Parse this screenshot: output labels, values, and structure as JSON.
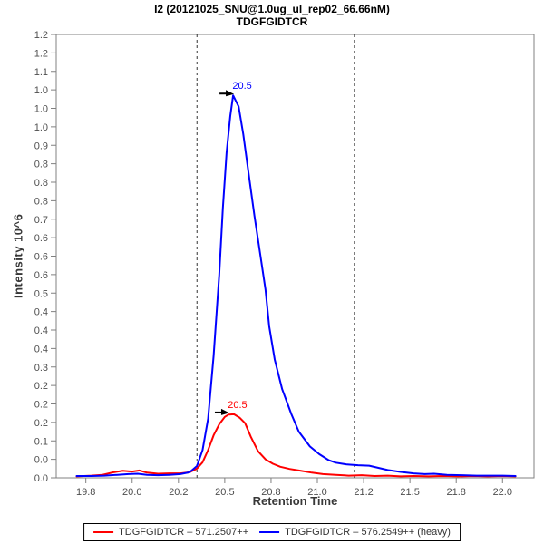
{
  "window": {
    "background": "#ffffff"
  },
  "chart_data": {
    "type": "line",
    "title": "I2 (20121025_SNU@1.0ug_ul_rep02_66.66nM)",
    "subtitle": "TDGFGIDTCR",
    "xlabel": "Retention Time",
    "ylabel": "Intensity 10^6",
    "xlim": [
      19.59,
      22.17
    ],
    "ylim": [
      0,
      1.2
    ],
    "grid": false,
    "legend_position": "bottom",
    "frame_color": "#808080",
    "tick_label_color": "#4d4d4d",
    "x_ticks": [
      {
        "v": 19.75,
        "label": "19.8"
      },
      {
        "v": 20.0,
        "label": "20.0"
      },
      {
        "v": 20.25,
        "label": "20.2"
      },
      {
        "v": 20.5,
        "label": "20.5"
      },
      {
        "v": 20.75,
        "label": "20.8"
      },
      {
        "v": 21.0,
        "label": "21.0"
      },
      {
        "v": 21.25,
        "label": "21.2"
      },
      {
        "v": 21.5,
        "label": "21.5"
      },
      {
        "v": 21.75,
        "label": "21.8"
      },
      {
        "v": 22.0,
        "label": "22.0"
      }
    ],
    "y_ticks": [
      {
        "v": 0.0,
        "label": "0.0"
      },
      {
        "v": 0.05,
        "label": "0.0"
      },
      {
        "v": 0.1,
        "label": "0.1"
      },
      {
        "v": 0.15,
        "label": "0.2"
      },
      {
        "v": 0.2,
        "label": "0.2"
      },
      {
        "v": 0.25,
        "label": "0.2"
      },
      {
        "v": 0.3,
        "label": "0.3"
      },
      {
        "v": 0.35,
        "label": "0.4"
      },
      {
        "v": 0.4,
        "label": "0.4"
      },
      {
        "v": 0.45,
        "label": "0.4"
      },
      {
        "v": 0.5,
        "label": "0.5"
      },
      {
        "v": 0.55,
        "label": "0.6"
      },
      {
        "v": 0.6,
        "label": "0.6"
      },
      {
        "v": 0.65,
        "label": "0.6"
      },
      {
        "v": 0.7,
        "label": "0.7"
      },
      {
        "v": 0.75,
        "label": "0.8"
      },
      {
        "v": 0.8,
        "label": "0.8"
      },
      {
        "v": 0.85,
        "label": "0.8"
      },
      {
        "v": 0.9,
        "label": "0.9"
      },
      {
        "v": 0.95,
        "label": "1.0"
      },
      {
        "v": 1.0,
        "label": "1.0"
      },
      {
        "v": 1.05,
        "label": "1.0"
      },
      {
        "v": 1.1,
        "label": "1.1"
      },
      {
        "v": 1.15,
        "label": "1.2"
      },
      {
        "v": 1.2,
        "label": "1.2"
      }
    ],
    "integration_boundaries": {
      "style": "dashed",
      "color": "#333333",
      "x_values": [
        20.35,
        21.2
      ]
    },
    "series": [
      {
        "id": "light",
        "name": "TDGFGIDTCR – 571.2507++",
        "color": "#ff0000",
        "annotation": {
          "text": "20.5",
          "x": 20.52,
          "y": 0.172
        },
        "points": [
          [
            19.7,
            0.004
          ],
          [
            19.78,
            0.006
          ],
          [
            19.84,
            0.008
          ],
          [
            19.9,
            0.015
          ],
          [
            19.95,
            0.019
          ],
          [
            20.0,
            0.017
          ],
          [
            20.04,
            0.02
          ],
          [
            20.08,
            0.014
          ],
          [
            20.14,
            0.011
          ],
          [
            20.2,
            0.012
          ],
          [
            20.26,
            0.012
          ],
          [
            20.31,
            0.015
          ],
          [
            20.35,
            0.025
          ],
          [
            20.38,
            0.042
          ],
          [
            20.41,
            0.075
          ],
          [
            20.44,
            0.115
          ],
          [
            20.47,
            0.145
          ],
          [
            20.5,
            0.165
          ],
          [
            20.52,
            0.171
          ],
          [
            20.55,
            0.172
          ],
          [
            20.58,
            0.163
          ],
          [
            20.61,
            0.148
          ],
          [
            20.64,
            0.112
          ],
          [
            20.68,
            0.072
          ],
          [
            20.72,
            0.05
          ],
          [
            20.76,
            0.038
          ],
          [
            20.8,
            0.03
          ],
          [
            20.85,
            0.024
          ],
          [
            20.9,
            0.02
          ],
          [
            20.97,
            0.014
          ],
          [
            21.03,
            0.01
          ],
          [
            21.1,
            0.008
          ],
          [
            21.17,
            0.006
          ],
          [
            21.24,
            0.007
          ],
          [
            21.31,
            0.005
          ],
          [
            21.38,
            0.006
          ],
          [
            21.45,
            0.004
          ],
          [
            21.52,
            0.005
          ],
          [
            21.6,
            0.004
          ],
          [
            21.68,
            0.005
          ],
          [
            21.76,
            0.004
          ],
          [
            21.84,
            0.005
          ],
          [
            21.92,
            0.004
          ],
          [
            22.0,
            0.005
          ],
          [
            22.07,
            0.004
          ]
        ]
      },
      {
        "id": "heavy",
        "name": "TDGFGIDTCR – 576.2549++ (heavy)",
        "color": "#0000ff",
        "annotation": {
          "text": "20.5",
          "x": 20.545,
          "y": 1.035
        },
        "points": [
          [
            19.7,
            0.005
          ],
          [
            19.78,
            0.005
          ],
          [
            19.85,
            0.006
          ],
          [
            19.92,
            0.008
          ],
          [
            19.98,
            0.01
          ],
          [
            20.03,
            0.011
          ],
          [
            20.08,
            0.008
          ],
          [
            20.14,
            0.007
          ],
          [
            20.2,
            0.008
          ],
          [
            20.26,
            0.01
          ],
          [
            20.31,
            0.015
          ],
          [
            20.35,
            0.032
          ],
          [
            20.38,
            0.075
          ],
          [
            20.41,
            0.16
          ],
          [
            20.44,
            0.33
          ],
          [
            20.47,
            0.55
          ],
          [
            20.49,
            0.73
          ],
          [
            20.51,
            0.88
          ],
          [
            20.53,
            0.98
          ],
          [
            20.545,
            1.035
          ],
          [
            20.56,
            1.02
          ],
          [
            20.575,
            1.005
          ],
          [
            20.6,
            0.93
          ],
          [
            20.63,
            0.82
          ],
          [
            20.66,
            0.71
          ],
          [
            20.69,
            0.61
          ],
          [
            20.72,
            0.51
          ],
          [
            20.74,
            0.41
          ],
          [
            20.77,
            0.32
          ],
          [
            20.81,
            0.24
          ],
          [
            20.86,
            0.172
          ],
          [
            20.9,
            0.125
          ],
          [
            20.96,
            0.085
          ],
          [
            21.01,
            0.064
          ],
          [
            21.06,
            0.048
          ],
          [
            21.1,
            0.041
          ],
          [
            21.16,
            0.036
          ],
          [
            21.22,
            0.034
          ],
          [
            21.28,
            0.033
          ],
          [
            21.33,
            0.027
          ],
          [
            21.38,
            0.021
          ],
          [
            21.45,
            0.016
          ],
          [
            21.52,
            0.012
          ],
          [
            21.58,
            0.01
          ],
          [
            21.63,
            0.011
          ],
          [
            21.7,
            0.008
          ],
          [
            21.78,
            0.007
          ],
          [
            21.86,
            0.006
          ],
          [
            21.94,
            0.006
          ],
          [
            22.0,
            0.006
          ],
          [
            22.07,
            0.005
          ]
        ]
      }
    ]
  },
  "legend": {
    "items": [
      {
        "id": "light",
        "label": "TDGFGIDTCR – 571.2507++",
        "color": "#ff0000"
      },
      {
        "id": "heavy",
        "label": "TDGFGIDTCR – 576.2549++ (heavy)",
        "color": "#0000ff"
      }
    ]
  }
}
